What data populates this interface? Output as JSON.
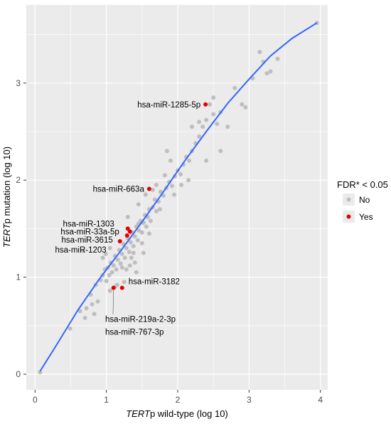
{
  "chart_data": {
    "type": "scatter",
    "title": "",
    "xlabel_italic": "TERT",
    "xlabel_rest": "p wild-type (log 10)",
    "ylabel_italic": "TERT",
    "ylabel_rest": "p mutation (log 10)",
    "xlim": [
      0,
      4
    ],
    "ylim": [
      0,
      3.6
    ],
    "x_ticks": [
      "0",
      "1",
      "2",
      "3",
      "4"
    ],
    "y_ticks": [
      "0",
      "1",
      "2",
      "3"
    ],
    "grid": true,
    "legend": {
      "title": "FDR* < 0.05",
      "position": "right",
      "entries": [
        {
          "label": "No",
          "color": "#bebebe"
        },
        {
          "label": "Yes",
          "color": "#e60000"
        }
      ]
    },
    "trend_line": {
      "color": "#3366ff",
      "points": [
        [
          0.07,
          0.03
        ],
        [
          0.3,
          0.3
        ],
        [
          0.6,
          0.66
        ],
        [
          0.9,
          0.98
        ],
        [
          1.2,
          1.27
        ],
        [
          1.5,
          1.57
        ],
        [
          1.8,
          1.88
        ],
        [
          2.1,
          2.2
        ],
        [
          2.4,
          2.5
        ],
        [
          2.7,
          2.79
        ],
        [
          3.0,
          3.04
        ],
        [
          3.3,
          3.28
        ],
        [
          3.6,
          3.46
        ],
        [
          3.95,
          3.62
        ]
      ]
    },
    "series": [
      {
        "name": "No",
        "color": "#bebebe",
        "points": [
          [
            0.07,
            0.02
          ],
          [
            0.49,
            0.47
          ],
          [
            0.63,
            0.65
          ],
          [
            0.72,
            0.68
          ],
          [
            0.78,
            0.82
          ],
          [
            0.85,
            0.92
          ],
          [
            0.92,
            0.97
          ],
          [
            0.88,
            0.75
          ],
          [
            0.95,
            1.02
          ],
          [
            0.98,
            1.08
          ],
          [
            1.0,
            0.96
          ],
          [
            1.02,
            1.1
          ],
          [
            1.04,
            1.02
          ],
          [
            1.06,
            1.15
          ],
          [
            1.08,
            1.05
          ],
          [
            1.1,
            1.12
          ],
          [
            1.12,
            1.22
          ],
          [
            1.14,
            1.08
          ],
          [
            1.16,
            1.18
          ],
          [
            1.18,
            1.28
          ],
          [
            1.2,
            1.14
          ],
          [
            1.22,
            1.24
          ],
          [
            1.24,
            1.34
          ],
          [
            1.26,
            1.2
          ],
          [
            1.28,
            1.3
          ],
          [
            1.3,
            1.4
          ],
          [
            1.32,
            1.26
          ],
          [
            1.34,
            1.36
          ],
          [
            1.36,
            1.46
          ],
          [
            1.38,
            1.32
          ],
          [
            1.4,
            1.42
          ],
          [
            1.42,
            1.52
          ],
          [
            1.44,
            1.38
          ],
          [
            1.46,
            1.48
          ],
          [
            1.48,
            1.58
          ],
          [
            1.5,
            1.46
          ],
          [
            1.52,
            1.56
          ],
          [
            1.54,
            1.64
          ],
          [
            1.56,
            1.52
          ],
          [
            1.58,
            1.62
          ],
          [
            1.6,
            1.7
          ],
          [
            1.62,
            1.58
          ],
          [
            1.65,
            1.72
          ],
          [
            1.68,
            1.8
          ],
          [
            1.7,
            1.68
          ],
          [
            1.73,
            1.78
          ],
          [
            1.76,
            1.88
          ],
          [
            1.8,
            1.84
          ],
          [
            1.84,
            1.92
          ],
          [
            1.88,
            1.98
          ],
          [
            1.92,
            1.94
          ],
          [
            1.96,
            2.04
          ],
          [
            2.0,
            2.1
          ],
          [
            2.04,
            2.06
          ],
          [
            2.08,
            2.16
          ],
          [
            2.12,
            2.24
          ],
          [
            2.16,
            2.2
          ],
          [
            2.2,
            2.3
          ],
          [
            2.25,
            2.38
          ],
          [
            2.3,
            2.45
          ],
          [
            2.35,
            2.55
          ],
          [
            2.4,
            2.62
          ],
          [
            2.45,
            2.78
          ],
          [
            2.5,
            2.68
          ],
          [
            2.55,
            2.58
          ],
          [
            2.6,
            2.7
          ],
          [
            2.7,
            2.55
          ],
          [
            2.8,
            2.95
          ],
          [
            2.9,
            2.78
          ],
          [
            2.95,
            2.75
          ],
          [
            3.05,
            3.05
          ],
          [
            3.15,
            3.32
          ],
          [
            3.2,
            3.22
          ],
          [
            3.25,
            3.1
          ],
          [
            3.3,
            3.12
          ],
          [
            3.4,
            3.25
          ],
          [
            3.95,
            3.62
          ],
          [
            1.3,
            1.62
          ],
          [
            1.35,
            1.2
          ],
          [
            1.25,
            0.95
          ],
          [
            1.15,
            0.92
          ],
          [
            1.4,
            1.15
          ],
          [
            1.55,
            1.85
          ],
          [
            1.45,
            1.75
          ],
          [
            1.7,
            1.95
          ],
          [
            1.9,
            2.2
          ],
          [
            1.85,
            2.3
          ],
          [
            2.2,
            2.55
          ],
          [
            2.3,
            2.6
          ],
          [
            2.5,
            2.85
          ],
          [
            2.6,
            2.3
          ],
          [
            2.4,
            2.2
          ],
          [
            2.15,
            2.0
          ],
          [
            0.67,
            1.27
          ],
          [
            0.99,
            1.24
          ],
          [
            1.05,
            0.86
          ],
          [
            1.12,
            0.9
          ],
          [
            1.28,
            1.08
          ],
          [
            1.33,
            1.12
          ],
          [
            1.6,
            1.45
          ],
          [
            1.75,
            1.7
          ],
          [
            1.95,
            1.85
          ],
          [
            2.05,
            1.95
          ],
          [
            1.82,
            2.05
          ],
          [
            1.65,
            1.9
          ],
          [
            1.45,
            1.55
          ],
          [
            1.5,
            1.35
          ],
          [
            1.38,
            1.25
          ],
          [
            1.22,
            1.1
          ],
          [
            1.05,
            1.3
          ],
          [
            0.95,
            1.2
          ],
          [
            0.8,
            0.72
          ],
          [
            0.83,
            0.62
          ],
          [
            0.7,
            0.58
          ],
          [
            1.42,
            1.05
          ],
          [
            1.52,
            1.25
          ]
        ]
      },
      {
        "name": "Yes",
        "color": "#e60000",
        "points": [
          [
            2.39,
            2.78
          ],
          [
            1.6,
            1.91
          ],
          [
            1.3,
            1.5
          ],
          [
            1.33,
            1.47
          ],
          [
            1.29,
            1.43
          ],
          [
            1.19,
            1.37
          ],
          [
            1.22,
            0.89
          ],
          [
            1.1,
            0.89
          ]
        ]
      }
    ],
    "annotations": [
      {
        "text": "hsa-miR-1285-5p",
        "x": 2.39,
        "y": 2.78,
        "side": "left"
      },
      {
        "text": "hsa-miR-663a",
        "x": 1.6,
        "y": 1.91,
        "side": "left"
      },
      {
        "text": "hsa-miR-1303",
        "x": 1.3,
        "y": 1.5,
        "side": "left"
      },
      {
        "text": "hsa-miR-33a-5p",
        "x": 1.33,
        "y": 1.47,
        "side": "left"
      },
      {
        "text": "hsa-miR-3615",
        "x": 1.29,
        "y": 1.43,
        "side": "left"
      },
      {
        "text": "hsa-miR-1203",
        "x": 1.19,
        "y": 1.37,
        "side": "left"
      },
      {
        "text": "hsa-miR-3182",
        "x": 1.22,
        "y": 0.89,
        "side": "right"
      },
      {
        "text": "hsa-miR-219a-2-3p",
        "x": 1.1,
        "y": 0.89,
        "side": "below"
      },
      {
        "text": "hsa-miR-767-3p",
        "x": 1.1,
        "y": 0.89,
        "side": "below2"
      }
    ]
  }
}
